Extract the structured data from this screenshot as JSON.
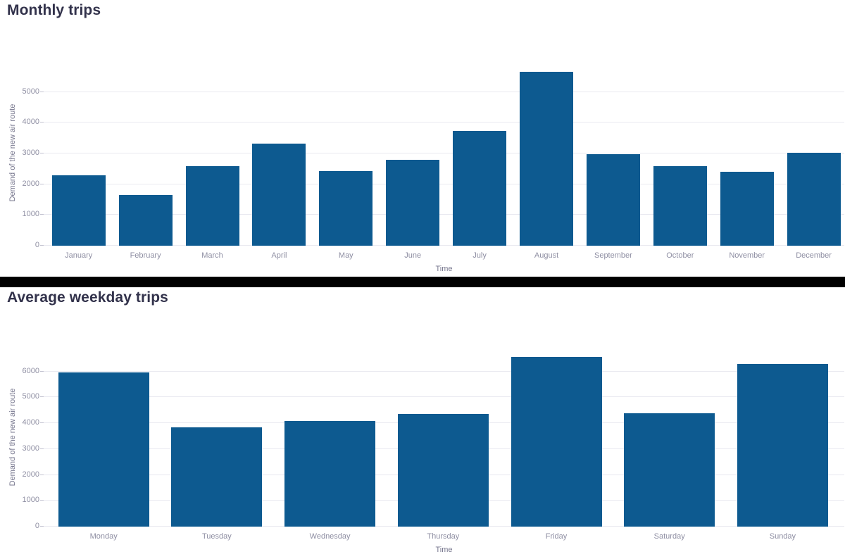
{
  "page": {
    "background": "#ffffff",
    "divider_color": "#000000"
  },
  "colors": {
    "bar": "#0d5a90",
    "title": "#32324b",
    "tick_label": "#8f8fa3",
    "axis_title": "#77778e",
    "gridline": "#e9e9f0"
  },
  "chart_data": [
    {
      "type": "bar",
      "title": "Monthly trips",
      "categories": [
        "January",
        "February",
        "March",
        "April",
        "May",
        "June",
        "July",
        "August",
        "September",
        "October",
        "November",
        "December"
      ],
      "values": [
        2300,
        1660,
        2600,
        3320,
        2430,
        2800,
        3740,
        5660,
        2990,
        2580,
        2400,
        3020
      ],
      "xlabel": "Time",
      "ylabel": "Demand of the new air route",
      "yticks": [
        0,
        1000,
        2000,
        3000,
        4000,
        5000
      ],
      "ylim": [
        0,
        6050
      ],
      "grid": true,
      "legend": "none",
      "bar_color": "#0d5a90"
    },
    {
      "type": "bar",
      "title": "Average weekday trips",
      "categories": [
        "Monday",
        "Tuesday",
        "Wednesday",
        "Thursday",
        "Friday",
        "Saturday",
        "Sunday"
      ],
      "values": [
        5960,
        3840,
        4090,
        4350,
        6570,
        4380,
        6300
      ],
      "xlabel": "Time",
      "ylabel": "Demand of the new air route",
      "yticks": [
        0,
        1000,
        2000,
        3000,
        4000,
        5000,
        6000
      ],
      "ylim": [
        0,
        6890
      ],
      "grid": true,
      "legend": "none",
      "bar_color": "#0d5a90"
    }
  ]
}
